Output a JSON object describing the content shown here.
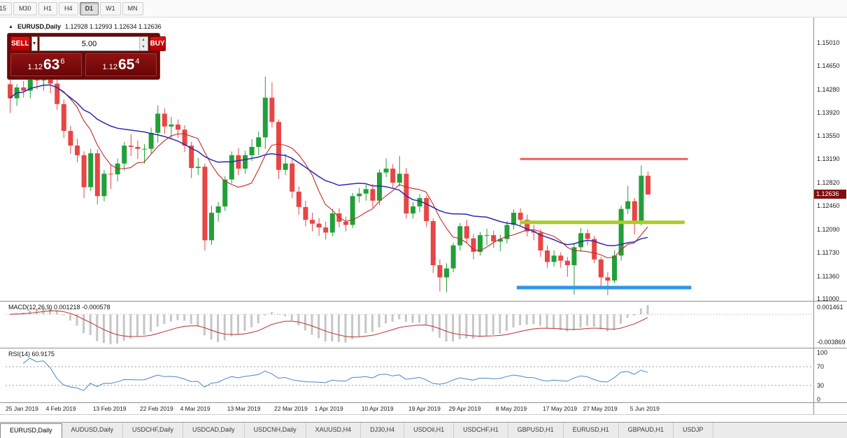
{
  "toolbar": {
    "timeframes": [
      {
        "label": "15",
        "active": false
      },
      {
        "label": "M30",
        "active": false
      },
      {
        "label": "H1",
        "active": false
      },
      {
        "label": "H4",
        "active": false
      },
      {
        "label": "D1",
        "active": true
      },
      {
        "label": "W1",
        "active": false
      },
      {
        "label": "MN",
        "active": false
      }
    ]
  },
  "chart": {
    "symbol_title": "EURUSD,Daily",
    "ohlc_text": "1.12928 1.12993 1.12634 1.12636",
    "current_price": "1.12636",
    "collapse_arrow": "▲",
    "price_axis_labels": [
      "1.15010",
      "1.14650",
      "1.14280",
      "1.13920",
      "1.13550",
      "1.13190",
      "1.12820",
      "1.12460",
      "1.12090",
      "1.11730",
      "1.11360",
      "1.11000"
    ]
  },
  "trade": {
    "sell_label": "SELL",
    "buy_label": "BUY",
    "volume": "5.00",
    "dropdown_icon": "▼",
    "spin_up": "▲",
    "spin_down": "▼",
    "bid": {
      "big": "1.12",
      "pips": "63",
      "point": "6"
    },
    "ask": {
      "big": "1.12",
      "pips": "65",
      "point": "4"
    }
  },
  "macd": {
    "label": "MACD(12,26,9) 0.001218 -0.000578",
    "axis_max": "0.001461",
    "axis_min": "-0.003869",
    "fast": 12,
    "slow": 26,
    "signal": 9
  },
  "rsi": {
    "label": "RSI(14) 60.9175",
    "period": 14,
    "axis_labels": [
      "100",
      "70",
      "30",
      "0"
    ],
    "levels": [
      70,
      30
    ]
  },
  "date_axis": [
    {
      "label": "25 Jan 2019",
      "idx": 0
    },
    {
      "label": "4 Feb 2019",
      "idx": 6
    },
    {
      "label": "13 Feb 2019",
      "idx": 13
    },
    {
      "label": "22 Feb 2019",
      "idx": 20
    },
    {
      "label": "4 Mar 2019",
      "idx": 26
    },
    {
      "label": "13 Mar 2019",
      "idx": 33
    },
    {
      "label": "22 Mar 2019",
      "idx": 40
    },
    {
      "label": "1 Apr 2019",
      "idx": 46
    },
    {
      "label": "10 Apr 2019",
      "idx": 53
    },
    {
      "label": "19 Apr 2019",
      "idx": 60
    },
    {
      "label": "29 Apr 2019",
      "idx": 66
    },
    {
      "label": "8 May 2019",
      "idx": 73
    },
    {
      "label": "17 May 2019",
      "idx": 80
    },
    {
      "label": "27 May 2019",
      "idx": 86
    },
    {
      "label": "5 Jun 2019",
      "idx": 93
    }
  ],
  "tabs": [
    {
      "label": "EURUSD,Daily",
      "active": true
    },
    {
      "label": "AUDUSD,Daily",
      "active": false
    },
    {
      "label": "USDCHF,Daily",
      "active": false
    },
    {
      "label": "USDCAD,Daily",
      "active": false
    },
    {
      "label": "USDCNH,Daily",
      "active": false
    },
    {
      "label": "XAUUSD,H4",
      "active": false
    },
    {
      "label": "DJ30,H4",
      "active": false
    },
    {
      "label": "USDOil,H1",
      "active": false
    },
    {
      "label": "USDCHF,H1",
      "active": false
    },
    {
      "label": "GBPUSD,H1",
      "active": false
    },
    {
      "label": "EURUSD,H1",
      "active": false
    },
    {
      "label": "GBPAUD,H1",
      "active": false
    },
    {
      "label": "USDJP",
      "active": false
    }
  ],
  "chart_data": {
    "type": "candlestick",
    "title": "EURUSD,Daily",
    "ylim": [
      1.11,
      1.151
    ],
    "ma_fast_period": 8,
    "ma_slow_period": 21,
    "colors": {
      "bull": "#21a038",
      "bear": "#e84545",
      "ma_fast": "#c62828",
      "ma_slow": "#2b2bb0",
      "histogram": "#c6c6c6",
      "signal": "#c04040",
      "rsi": "#4a86c8",
      "resistance": "#f25d5d",
      "mid_level": "#aacb2a",
      "support": "#2f96e8"
    },
    "hlines": [
      {
        "name": "resistance-line",
        "price": 1.1319,
        "from": 76,
        "to": 101,
        "color": "#f25d5d",
        "width": 3
      },
      {
        "name": "mid-level-line",
        "price": 1.122,
        "from": 76,
        "to": 100.5,
        "color": "#aacb2a",
        "width": 5
      },
      {
        "name": "support-line",
        "price": 1.1118,
        "from": 75.5,
        "to": 101.5,
        "color": "#2f96e8",
        "width": 5
      }
    ],
    "candles": [
      [
        1.1436,
        1.1447,
        1.1391,
        1.1414
      ],
      [
        1.1414,
        1.1436,
        1.1402,
        1.1431
      ],
      [
        1.1431,
        1.1441,
        1.1415,
        1.1426
      ],
      [
        1.1426,
        1.1452,
        1.1414,
        1.1446
      ],
      [
        1.1446,
        1.1453,
        1.1428,
        1.1442
      ],
      [
        1.1442,
        1.145,
        1.1426,
        1.1448
      ],
      [
        1.1448,
        1.1455,
        1.1422,
        1.1437
      ],
      [
        1.1437,
        1.1443,
        1.1396,
        1.1405
      ],
      [
        1.1405,
        1.1412,
        1.1352,
        1.1363
      ],
      [
        1.1363,
        1.1371,
        1.1327,
        1.134
      ],
      [
        1.134,
        1.1351,
        1.1314,
        1.1325
      ],
      [
        1.1325,
        1.1331,
        1.1258,
        1.1275
      ],
      [
        1.1275,
        1.1335,
        1.1269,
        1.1328
      ],
      [
        1.1328,
        1.1334,
        1.1248,
        1.1261
      ],
      [
        1.1261,
        1.1302,
        1.1253,
        1.1296
      ],
      [
        1.1296,
        1.131,
        1.1272,
        1.1295
      ],
      [
        1.1295,
        1.132,
        1.1284,
        1.1312
      ],
      [
        1.1312,
        1.1346,
        1.1301,
        1.134
      ],
      [
        1.134,
        1.1358,
        1.1324,
        1.1338
      ],
      [
        1.1338,
        1.1348,
        1.1319,
        1.1335
      ],
      [
        1.1335,
        1.1342,
        1.1312,
        1.1335
      ],
      [
        1.1335,
        1.1368,
        1.1328,
        1.136
      ],
      [
        1.136,
        1.1403,
        1.1345,
        1.139
      ],
      [
        1.139,
        1.1398,
        1.1358,
        1.137
      ],
      [
        1.137,
        1.1385,
        1.135,
        1.1373
      ],
      [
        1.1373,
        1.1381,
        1.1352,
        1.1365
      ],
      [
        1.1365,
        1.1372,
        1.133,
        1.134
      ],
      [
        1.134,
        1.1346,
        1.1289,
        1.1305
      ],
      [
        1.1305,
        1.1321,
        1.1294,
        1.1307
      ],
      [
        1.1307,
        1.1312,
        1.1176,
        1.1192
      ],
      [
        1.1192,
        1.1246,
        1.1185,
        1.1235
      ],
      [
        1.1235,
        1.1252,
        1.1221,
        1.1245
      ],
      [
        1.1245,
        1.1292,
        1.1238,
        1.1287
      ],
      [
        1.1287,
        1.1331,
        1.1281,
        1.1325
      ],
      [
        1.1325,
        1.1336,
        1.1294,
        1.1304
      ],
      [
        1.1304,
        1.1332,
        1.1296,
        1.1325
      ],
      [
        1.1325,
        1.135,
        1.1316,
        1.1338
      ],
      [
        1.1338,
        1.1362,
        1.1325,
        1.1353
      ],
      [
        1.1353,
        1.1448,
        1.1335,
        1.1415
      ],
      [
        1.1415,
        1.1439,
        1.1368,
        1.1377
      ],
      [
        1.1377,
        1.1381,
        1.1288,
        1.1302
      ],
      [
        1.1302,
        1.1327,
        1.1294,
        1.1312
      ],
      [
        1.1312,
        1.1319,
        1.1258,
        1.1268
      ],
      [
        1.1268,
        1.1276,
        1.1232,
        1.1244
      ],
      [
        1.1244,
        1.1254,
        1.1214,
        1.1224
      ],
      [
        1.1224,
        1.1235,
        1.1206,
        1.1218
      ],
      [
        1.1218,
        1.1227,
        1.1199,
        1.1212
      ],
      [
        1.1212,
        1.1221,
        1.1193,
        1.1204
      ],
      [
        1.1204,
        1.1241,
        1.1198,
        1.1234
      ],
      [
        1.1234,
        1.1242,
        1.1212,
        1.1221
      ],
      [
        1.1221,
        1.1229,
        1.1206,
        1.1216
      ],
      [
        1.1216,
        1.1266,
        1.1211,
        1.1261
      ],
      [
        1.1261,
        1.1274,
        1.1251,
        1.1265
      ],
      [
        1.1265,
        1.1279,
        1.1254,
        1.1272
      ],
      [
        1.1272,
        1.128,
        1.1243,
        1.1254
      ],
      [
        1.1254,
        1.1303,
        1.1247,
        1.1298
      ],
      [
        1.1298,
        1.132,
        1.1291,
        1.1304
      ],
      [
        1.1304,
        1.1311,
        1.1274,
        1.1282
      ],
      [
        1.1282,
        1.1324,
        1.1276,
        1.1296
      ],
      [
        1.1296,
        1.1305,
        1.1226,
        1.1234
      ],
      [
        1.1234,
        1.1252,
        1.1226,
        1.1245
      ],
      [
        1.1245,
        1.1264,
        1.1236,
        1.1258
      ],
      [
        1.1258,
        1.1262,
        1.1213,
        1.1222
      ],
      [
        1.1222,
        1.1226,
        1.1141,
        1.1153
      ],
      [
        1.1153,
        1.1162,
        1.1112,
        1.1134
      ],
      [
        1.1134,
        1.1156,
        1.1111,
        1.1148
      ],
      [
        1.1148,
        1.1188,
        1.1142,
        1.1184
      ],
      [
        1.1184,
        1.1219,
        1.1176,
        1.1214
      ],
      [
        1.1214,
        1.1224,
        1.1187,
        1.1195
      ],
      [
        1.1195,
        1.1202,
        1.1162,
        1.1174
      ],
      [
        1.1174,
        1.1205,
        1.1168,
        1.12
      ],
      [
        1.12,
        1.121,
        1.1184,
        1.12
      ],
      [
        1.12,
        1.1207,
        1.118,
        1.119
      ],
      [
        1.119,
        1.1201,
        1.1175,
        1.1194
      ],
      [
        1.1194,
        1.1222,
        1.1187,
        1.1216
      ],
      [
        1.1216,
        1.124,
        1.1209,
        1.1235
      ],
      [
        1.1235,
        1.1242,
        1.1215,
        1.1224
      ],
      [
        1.1224,
        1.1232,
        1.1198,
        1.1206
      ],
      [
        1.1206,
        1.1216,
        1.1192,
        1.1204
      ],
      [
        1.1204,
        1.1209,
        1.1166,
        1.1176
      ],
      [
        1.1176,
        1.1184,
        1.1149,
        1.1158
      ],
      [
        1.1158,
        1.1176,
        1.1151,
        1.1168
      ],
      [
        1.1168,
        1.1173,
        1.1149,
        1.116
      ],
      [
        1.116,
        1.1166,
        1.1135,
        1.1153
      ],
      [
        1.1153,
        1.1188,
        1.1107,
        1.1181
      ],
      [
        1.1181,
        1.1211,
        1.1174,
        1.1203
      ],
      [
        1.1203,
        1.1209,
        1.1184,
        1.1194
      ],
      [
        1.1194,
        1.1199,
        1.1156,
        1.1162
      ],
      [
        1.1162,
        1.1166,
        1.1116,
        1.1134
      ],
      [
        1.1134,
        1.1142,
        1.1106,
        1.1129
      ],
      [
        1.1129,
        1.1176,
        1.1125,
        1.1168
      ],
      [
        1.1168,
        1.1246,
        1.116,
        1.1241
      ],
      [
        1.1241,
        1.1277,
        1.1233,
        1.1253
      ],
      [
        1.1253,
        1.1258,
        1.1201,
        1.1221
      ],
      [
        1.1221,
        1.1309,
        1.1215,
        1.1293
      ],
      [
        1.12928,
        1.12993,
        1.12634,
        1.12636
      ]
    ]
  }
}
